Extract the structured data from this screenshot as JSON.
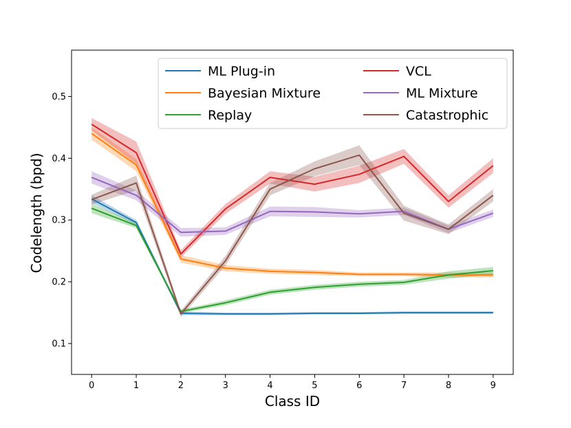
{
  "chart_data": {
    "type": "line",
    "title": "",
    "xlabel": "Class ID",
    "ylabel": "Codelength (bpd)",
    "x": [
      0,
      1,
      2,
      3,
      4,
      5,
      6,
      7,
      8,
      9
    ],
    "xlim": [
      -0.45,
      9.45
    ],
    "ylim": [
      0.05,
      0.575
    ],
    "xticks": [
      0,
      1,
      2,
      3,
      4,
      5,
      6,
      7,
      8,
      9
    ],
    "yticks": [
      0.1,
      0.2,
      0.3,
      0.4,
      0.5
    ],
    "grid": false,
    "legend_position": "top-right",
    "legend_columns": 2,
    "series": [
      {
        "name": "ML Plug-in",
        "color": "#1f77b4",
        "values": [
          0.334,
          0.296,
          0.149,
          0.148,
          0.148,
          0.149,
          0.149,
          0.15,
          0.15,
          0.15
        ],
        "band": [
          0.006,
          0.004,
          0.003,
          0.002,
          0.002,
          0.002,
          0.002,
          0.002,
          0.002,
          0.002
        ]
      },
      {
        "name": "Bayesian Mixture",
        "color": "#ff7f0e",
        "values": [
          0.44,
          0.389,
          0.237,
          0.222,
          0.217,
          0.215,
          0.212,
          0.212,
          0.211,
          0.211
        ],
        "band": [
          0.01,
          0.01,
          0.006,
          0.005,
          0.004,
          0.004,
          0.003,
          0.003,
          0.004,
          0.004
        ]
      },
      {
        "name": "Replay",
        "color": "#2ca02c",
        "values": [
          0.319,
          0.291,
          0.152,
          0.166,
          0.183,
          0.191,
          0.196,
          0.199,
          0.211,
          0.218
        ],
        "band": [
          0.008,
          0.004,
          0.003,
          0.004,
          0.004,
          0.004,
          0.004,
          0.004,
          0.006,
          0.006
        ]
      },
      {
        "name": "VCL",
        "color": "#d62728",
        "values": [
          0.455,
          0.409,
          0.245,
          0.318,
          0.369,
          0.358,
          0.374,
          0.403,
          0.33,
          0.388
        ],
        "band": [
          0.01,
          0.018,
          0.006,
          0.008,
          0.01,
          0.012,
          0.014,
          0.012,
          0.01,
          0.012
        ]
      },
      {
        "name": "ML Mixture",
        "color": "#9467bd",
        "values": [
          0.369,
          0.34,
          0.28,
          0.282,
          0.314,
          0.313,
          0.31,
          0.314,
          0.285,
          0.311
        ],
        "band": [
          0.01,
          0.008,
          0.007,
          0.006,
          0.008,
          0.008,
          0.006,
          0.006,
          0.006,
          0.006
        ]
      },
      {
        "name": "Catastrophic",
        "color": "#8c564b",
        "values": [
          0.333,
          0.36,
          0.148,
          0.234,
          0.35,
          0.383,
          0.405,
          0.311,
          0.285,
          0.34
        ],
        "band": [
          0.008,
          0.012,
          0.005,
          0.008,
          0.01,
          0.012,
          0.016,
          0.012,
          0.008,
          0.01
        ]
      }
    ]
  }
}
